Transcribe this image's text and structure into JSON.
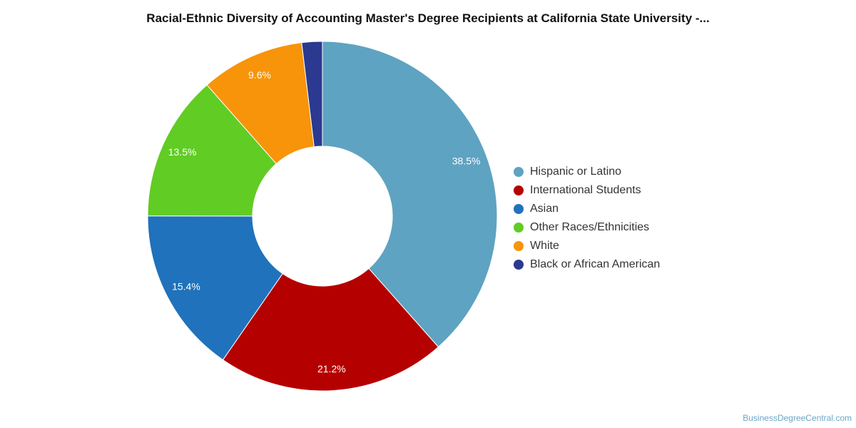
{
  "chart_data": {
    "type": "pie",
    "title": "Racial-Ethnic Diversity of Accounting Master's Degree Recipients at California State University -...",
    "donut": true,
    "legend_position": "right",
    "slices": [
      {
        "label": "Hispanic or Latino",
        "value": 38.5,
        "value_label": "38.5%",
        "color": "#5ea3c1"
      },
      {
        "label": "International Students",
        "value": 21.2,
        "value_label": "21.2%",
        "color": "#b50000"
      },
      {
        "label": "Asian",
        "value": 15.4,
        "value_label": "15.4%",
        "color": "#1f72bb"
      },
      {
        "label": "Other Races/Ethnicities",
        "value": 13.5,
        "value_label": "13.5%",
        "color": "#61cc24"
      },
      {
        "label": "White",
        "value": 9.6,
        "value_label": "9.6%",
        "color": "#f7940a"
      },
      {
        "label": "Black or African American",
        "value": 1.9,
        "value_label": "",
        "color": "#2b3990"
      }
    ]
  },
  "footer": {
    "credit": "BusinessDegreeCentral.com"
  }
}
